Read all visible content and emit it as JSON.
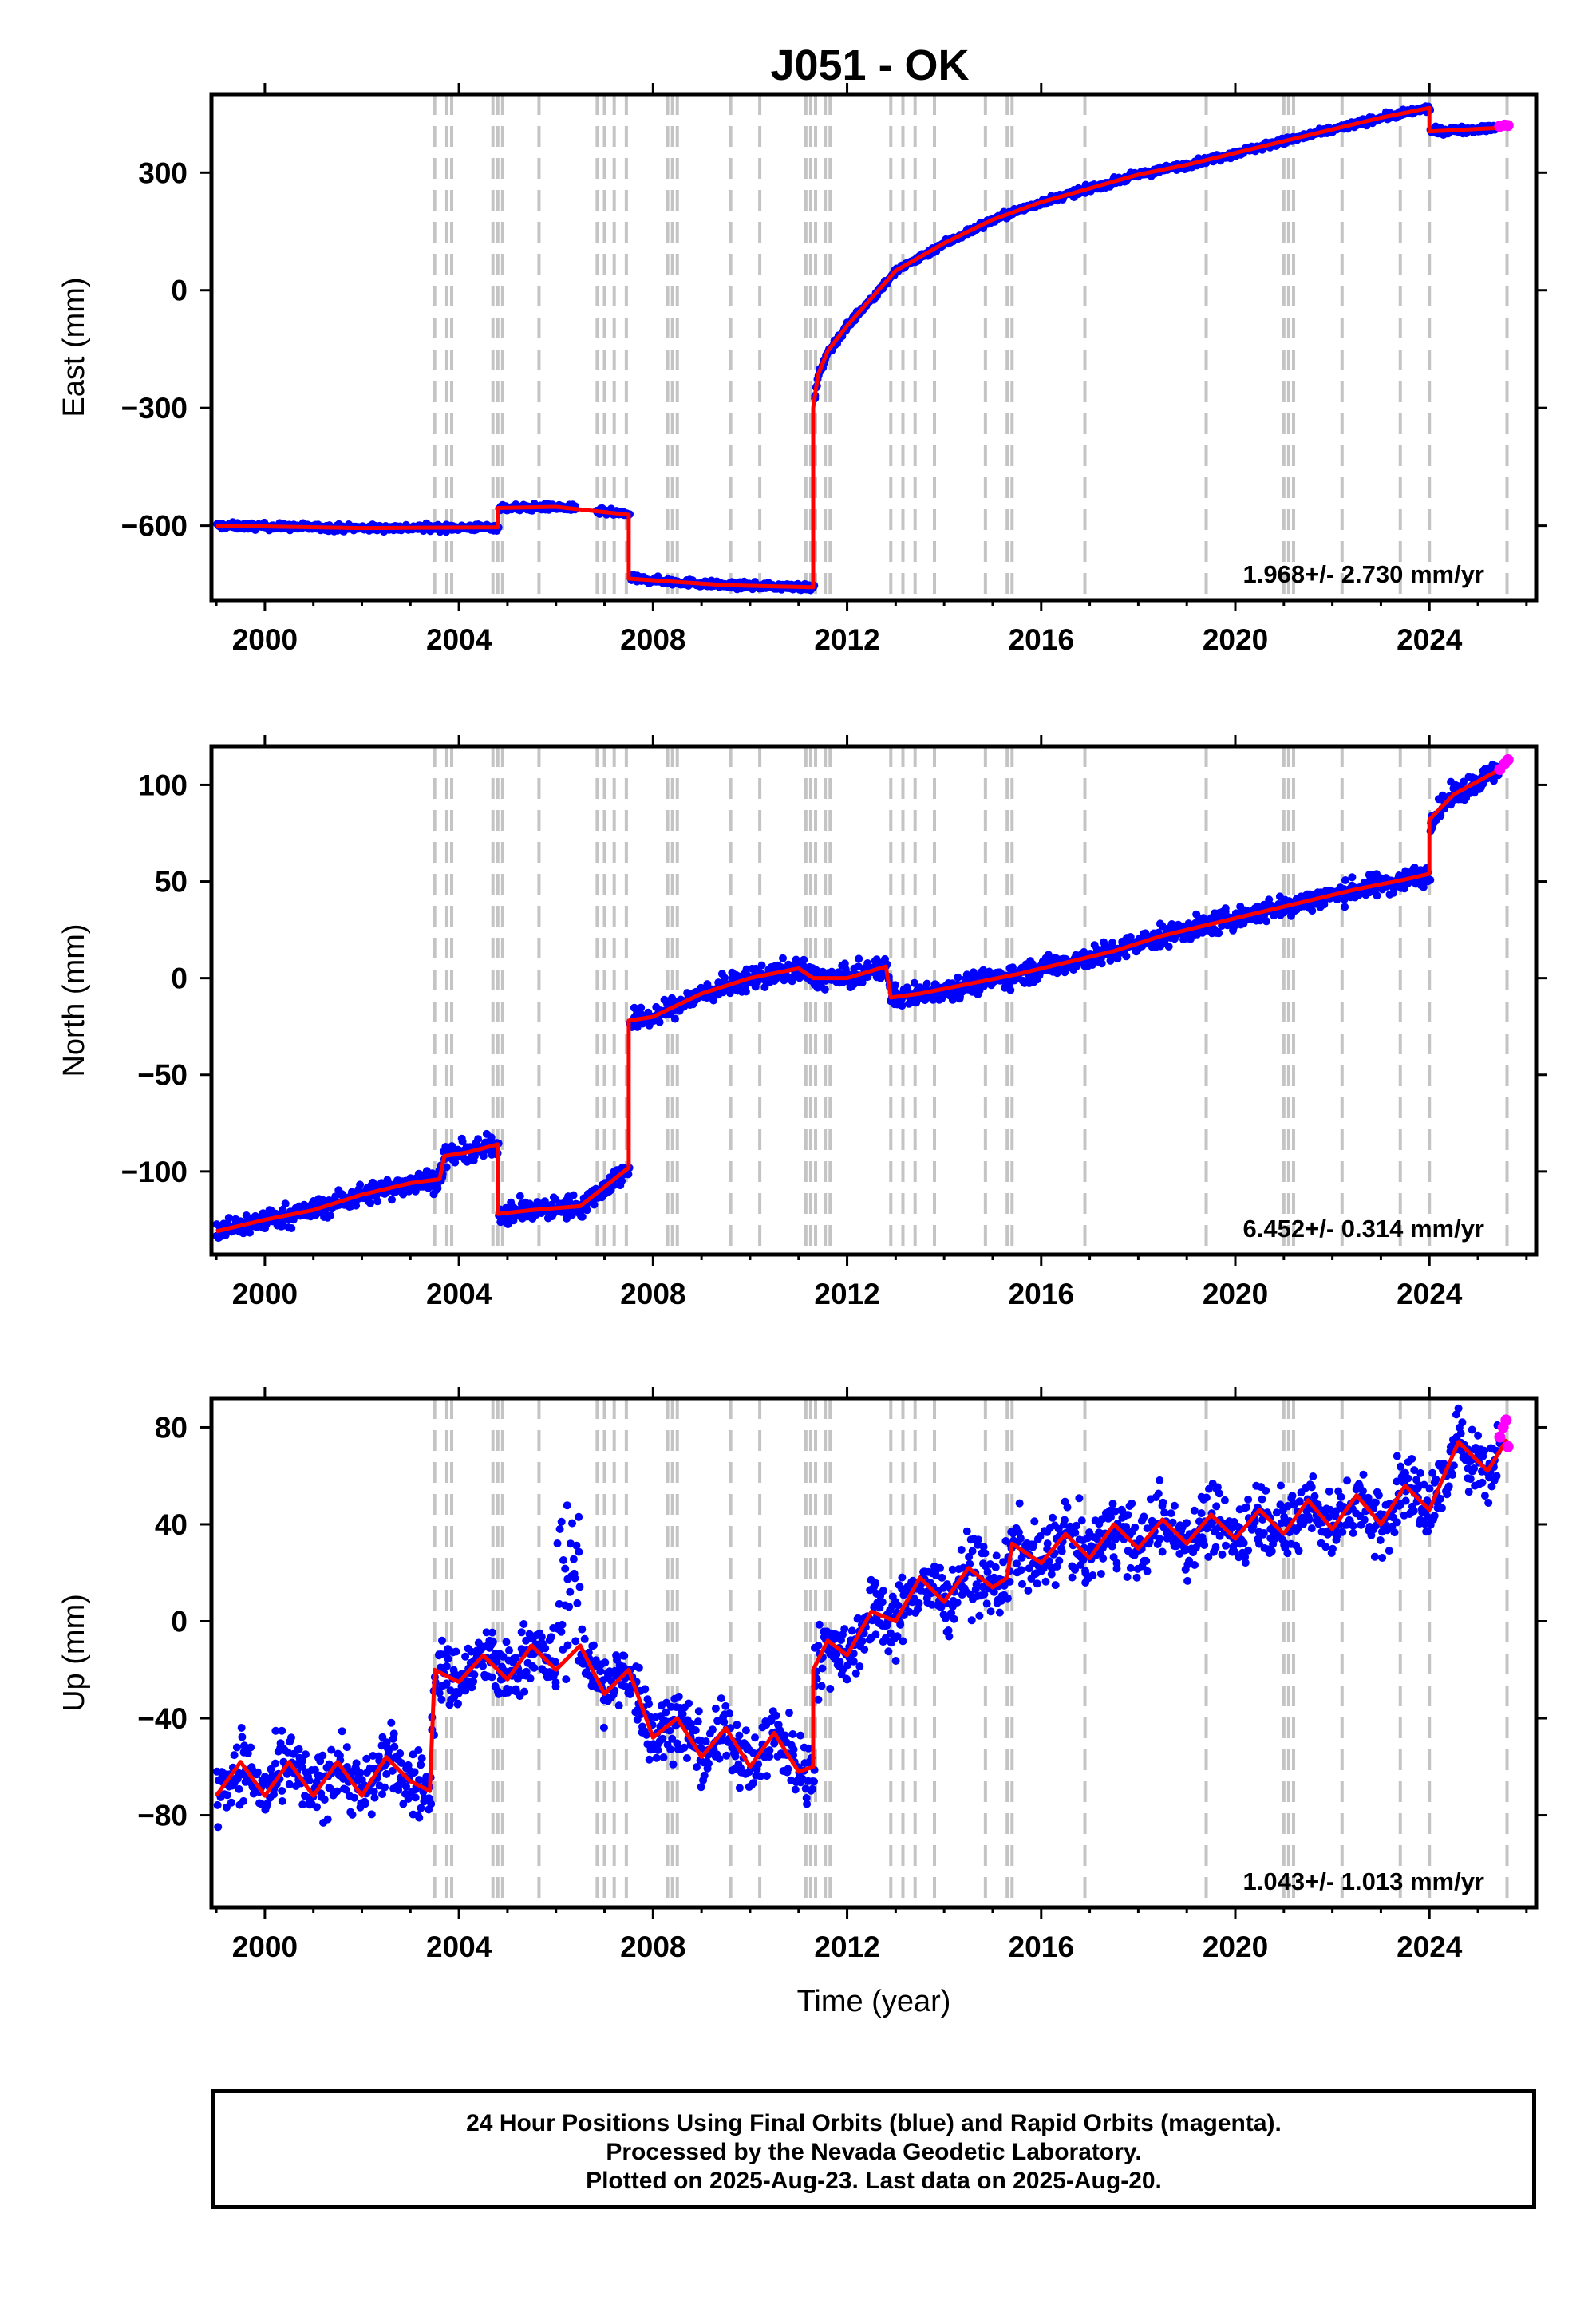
{
  "title": "J051 - OK",
  "footer": {
    "line1": "24 Hour Positions Using Final Orbits (blue) and Rapid Orbits (magenta).",
    "line2": "Processed by the Nevada Geodetic Laboratory.",
    "line3": "Plotted on 2025-Aug-23. Last data on 2025-Aug-20."
  },
  "colors": {
    "final_orbits": "#0000ff",
    "rapid_orbits": "#ff00ff",
    "model_fit": "#ff0000",
    "event_lines": "#c4c4c4"
  },
  "chart_data": [
    {
      "type": "scatter",
      "panel": "east",
      "ylabel": "East (mm)",
      "xlabel": "",
      "rate_text": "1.968+/- 2.730 mm/yr",
      "xlim": [
        1998.9,
        2026.2
      ],
      "ylim": [
        -790,
        500
      ],
      "xticks": [
        2000,
        2004,
        2008,
        2012,
        2016,
        2020,
        2024
      ],
      "yticks": [
        -600,
        -300,
        0,
        300
      ],
      "ytick_labels": [
        "−600",
        "−300",
        "0",
        "300"
      ],
      "grid": false,
      "model": [
        [
          1999.0,
          -600
        ],
        [
          2002.0,
          -606
        ],
        [
          2004.8,
          -604
        ],
        [
          2004.8,
          -555
        ],
        [
          2006.0,
          -552
        ],
        [
          2007.5,
          -572
        ],
        [
          2007.5,
          -735
        ],
        [
          2009.5,
          -752
        ],
        [
          2011.3,
          -757
        ],
        [
          2011.3,
          -300
        ],
        [
          2011.4,
          -215
        ],
        [
          2011.6,
          -155
        ],
        [
          2012.0,
          -90
        ],
        [
          2012.5,
          -20
        ],
        [
          2013.0,
          50
        ],
        [
          2014.0,
          120
        ],
        [
          2015.0,
          180
        ],
        [
          2016.0,
          225
        ],
        [
          2017.0,
          260
        ],
        [
          2018.0,
          295
        ],
        [
          2019.0,
          320
        ],
        [
          2020.0,
          350
        ],
        [
          2021.0,
          380
        ],
        [
          2022.0,
          410
        ],
        [
          2023.0,
          440
        ],
        [
          2024.0,
          465
        ],
        [
          2024.0,
          405
        ],
        [
          2025.6,
          415
        ]
      ],
      "rapid": [
        [
          2025.45,
          418
        ],
        [
          2025.55,
          421
        ],
        [
          2025.62,
          420
        ]
      ]
    },
    {
      "type": "scatter",
      "panel": "north",
      "ylabel": "North (mm)",
      "xlabel": "",
      "rate_text": "6.452+/- 0.314 mm/yr",
      "xlim": [
        1998.9,
        2026.2
      ],
      "ylim": [
        -143,
        120
      ],
      "xticks": [
        2000,
        2004,
        2008,
        2012,
        2016,
        2020,
        2024
      ],
      "yticks": [
        -100,
        -50,
        0,
        50,
        100
      ],
      "ytick_labels": [
        "−100",
        "−50",
        "0",
        "50",
        "100"
      ],
      "grid": false,
      "model": [
        [
          1999.0,
          -131
        ],
        [
          2000.0,
          -125
        ],
        [
          2001.0,
          -120
        ],
        [
          2002.0,
          -112
        ],
        [
          2003.0,
          -106
        ],
        [
          2003.6,
          -104
        ],
        [
          2003.7,
          -92
        ],
        [
          2004.2,
          -90
        ],
        [
          2004.8,
          -86
        ],
        [
          2004.8,
          -122
        ],
        [
          2005.5,
          -120
        ],
        [
          2006.5,
          -118
        ],
        [
          2007.0,
          -108
        ],
        [
          2007.5,
          -98
        ],
        [
          2007.5,
          -22
        ],
        [
          2008.0,
          -20
        ],
        [
          2009.0,
          -8
        ],
        [
          2010.0,
          0
        ],
        [
          2011.0,
          5
        ],
        [
          2011.3,
          0
        ],
        [
          2012.0,
          0
        ],
        [
          2012.8,
          6
        ],
        [
          2012.9,
          -10
        ],
        [
          2013.5,
          -8
        ],
        [
          2014.5,
          -3
        ],
        [
          2015.5,
          2
        ],
        [
          2016.5,
          8
        ],
        [
          2017.5,
          14
        ],
        [
          2018.5,
          22
        ],
        [
          2019.5,
          28
        ],
        [
          2020.5,
          34
        ],
        [
          2021.5,
          40
        ],
        [
          2022.5,
          46
        ],
        [
          2023.5,
          51
        ],
        [
          2024.0,
          54
        ],
        [
          2024.0,
          82
        ],
        [
          2024.5,
          95
        ],
        [
          2025.6,
          110
        ]
      ],
      "rapid": [
        [
          2025.45,
          108
        ],
        [
          2025.55,
          111
        ],
        [
          2025.62,
          113
        ]
      ]
    },
    {
      "type": "scatter",
      "panel": "up",
      "ylabel": "Up (mm)",
      "xlabel": "Time (year)",
      "rate_text": "1.043+/- 1.013 mm/yr",
      "xlim": [
        1998.9,
        2026.2
      ],
      "ylim": [
        -118,
        92
      ],
      "xticks": [
        2000,
        2004,
        2008,
        2012,
        2016,
        2020,
        2024
      ],
      "yticks": [
        -80,
        -40,
        0,
        40,
        80
      ],
      "ytick_labels": [
        "−80",
        "−40",
        "0",
        "40",
        "80"
      ],
      "grid": false,
      "model": [
        [
          1999.0,
          -72
        ],
        [
          1999.5,
          -58
        ],
        [
          2000.0,
          -72
        ],
        [
          2000.5,
          -58
        ],
        [
          2001.0,
          -72
        ],
        [
          2001.5,
          -58
        ],
        [
          2002.0,
          -72
        ],
        [
          2002.5,
          -56
        ],
        [
          2003.0,
          -66
        ],
        [
          2003.4,
          -70
        ],
        [
          2003.5,
          -20
        ],
        [
          2004.0,
          -25
        ],
        [
          2004.5,
          -14
        ],
        [
          2005.0,
          -24
        ],
        [
          2005.5,
          -10
        ],
        [
          2006.0,
          -20
        ],
        [
          2006.5,
          -10
        ],
        [
          2007.0,
          -30
        ],
        [
          2007.5,
          -20
        ],
        [
          2008.0,
          -48
        ],
        [
          2008.5,
          -40
        ],
        [
          2009.0,
          -56
        ],
        [
          2009.5,
          -44
        ],
        [
          2010.0,
          -60
        ],
        [
          2010.5,
          -46
        ],
        [
          2011.0,
          -62
        ],
        [
          2011.3,
          -60
        ],
        [
          2011.3,
          -20
        ],
        [
          2011.6,
          -8
        ],
        [
          2012.0,
          -14
        ],
        [
          2012.5,
          4
        ],
        [
          2013.0,
          0
        ],
        [
          2013.5,
          18
        ],
        [
          2014.0,
          8
        ],
        [
          2014.5,
          22
        ],
        [
          2015.0,
          14
        ],
        [
          2015.3,
          18
        ],
        [
          2015.4,
          32
        ],
        [
          2016.0,
          24
        ],
        [
          2016.5,
          36
        ],
        [
          2017.0,
          26
        ],
        [
          2017.5,
          40
        ],
        [
          2018.0,
          30
        ],
        [
          2018.5,
          42
        ],
        [
          2019.0,
          32
        ],
        [
          2019.5,
          44
        ],
        [
          2020.0,
          34
        ],
        [
          2020.5,
          46
        ],
        [
          2021.0,
          36
        ],
        [
          2021.5,
          50
        ],
        [
          2022.0,
          38
        ],
        [
          2022.5,
          52
        ],
        [
          2023.0,
          40
        ],
        [
          2023.5,
          56
        ],
        [
          2024.0,
          46
        ],
        [
          2024.6,
          74
        ],
        [
          2025.2,
          62
        ],
        [
          2025.6,
          75
        ]
      ],
      "rapid": [
        [
          2025.45,
          76
        ],
        [
          2025.52,
          80
        ],
        [
          2025.58,
          83
        ],
        [
          2025.62,
          72
        ]
      ]
    }
  ],
  "events": [
    2003.5,
    2003.75,
    2003.85,
    2004.7,
    2004.8,
    2004.9,
    2005.65,
    2006.85,
    2007.0,
    2007.2,
    2007.45,
    2008.3,
    2008.4,
    2008.5,
    2009.6,
    2010.2,
    2011.15,
    2011.25,
    2011.35,
    2011.55,
    2011.65,
    2012.9,
    2013.15,
    2013.4,
    2013.8,
    2014.85,
    2015.3,
    2015.4,
    2016.9,
    2019.4,
    2021.0,
    2021.1,
    2021.2,
    2022.2,
    2023.4,
    2024.0,
    2025.6
  ]
}
